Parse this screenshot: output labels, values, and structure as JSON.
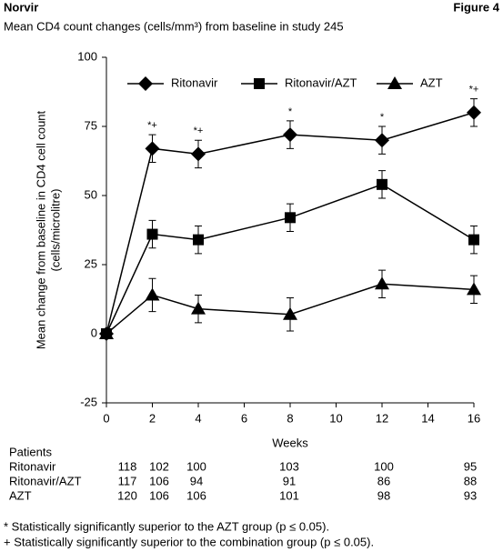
{
  "header": {
    "left": "Norvir",
    "right": "Figure 4"
  },
  "chart_data": {
    "type": "line",
    "title": "Mean CD4 count changes (cells/mm³) from baseline in study 245",
    "x_label": "Weeks",
    "y_label": [
      "Mean change from baseline in CD4 cell count",
      "(cells/microlitre)"
    ],
    "x": [
      0,
      2,
      4,
      8,
      12,
      16
    ],
    "xlim": [
      0,
      16
    ],
    "xticks": [
      0,
      2,
      4,
      6,
      8,
      10,
      12,
      14,
      16
    ],
    "ylim": [
      -25,
      100
    ],
    "yticks": [
      100,
      75,
      50,
      25,
      0,
      -25
    ],
    "legend": "top",
    "series": [
      {
        "name": "Ritonavir",
        "color": "#000000",
        "marker": "diamond",
        "values": [
          0,
          67,
          65,
          72,
          70,
          80
        ],
        "errors": [
          0,
          5,
          5,
          5,
          5,
          5
        ]
      },
      {
        "name": "Ritonavir/AZT",
        "color": "#000000",
        "marker": "square",
        "values": [
          0,
          36,
          34,
          42,
          54,
          34
        ],
        "errors": [
          0,
          5,
          5,
          5,
          5,
          5
        ]
      },
      {
        "name": "AZT",
        "color": "#000000",
        "marker": "triangle",
        "values": [
          0,
          14,
          9,
          7,
          18,
          16
        ],
        "errors": [
          0,
          6,
          5,
          6,
          5,
          5
        ]
      }
    ],
    "annotations": [
      {
        "x": 2,
        "text": "*+"
      },
      {
        "x": 4,
        "text": "*+"
      },
      {
        "x": 8,
        "text": "*"
      },
      {
        "x": 12,
        "text": "*"
      },
      {
        "x": 16,
        "text": "*+"
      }
    ]
  },
  "patients": {
    "title": "Patients",
    "rows": [
      {
        "name": "Ritonavir",
        "counts": [
          118,
          102,
          100,
          103,
          100,
          95
        ]
      },
      {
        "name": "Ritonavir/AZT",
        "counts": [
          117,
          106,
          94,
          91,
          86,
          88
        ]
      },
      {
        "name": "AZT",
        "counts": [
          120,
          106,
          106,
          101,
          98,
          93
        ]
      }
    ]
  },
  "footnotes": [
    "* Statistically significantly superior to the AZT group (p ≤ 0.05).",
    "+ Statistically significantly superior to the combination group (p ≤ 0.05)."
  ]
}
